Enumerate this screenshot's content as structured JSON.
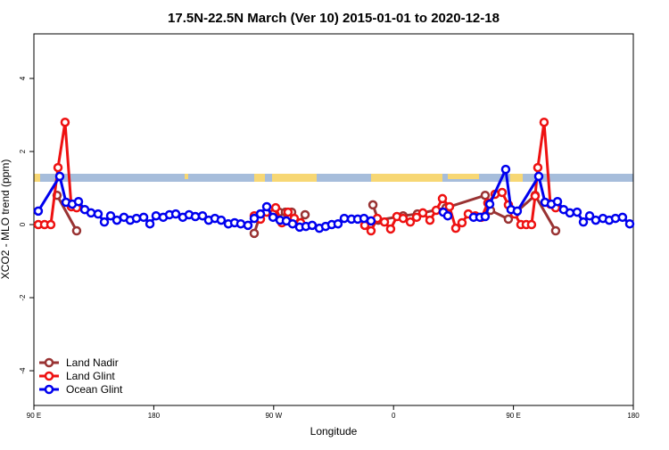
{
  "chart_data": {
    "type": "line",
    "title": "17.5N-22.5N March (Ver 10)   2015-01-01 to 2020-12-18",
    "x_label": "Longitude",
    "y_label": "XCO2 - MLO trend (ppm)",
    "xlim": [
      90,
      540
    ],
    "ylim": [
      -4.95,
      5.22
    ],
    "xticks": [
      {
        "value": 90,
        "label": "90 E"
      },
      {
        "value": 180,
        "label": "180"
      },
      {
        "value": 270,
        "label": "90 W"
      },
      {
        "value": 360,
        "label": "0"
      },
      {
        "value": 450,
        "label": "90 E"
      },
      {
        "value": 540,
        "label": "180"
      }
    ],
    "yticks": [
      -4,
      -2,
      0,
      2,
      4
    ],
    "legend": "bottom-left",
    "series": [
      {
        "name": "Land Nadir",
        "color": "#993333",
        "x": [
          107.4,
          122.1,
          null,
          255.4,
          260.1,
          274.1,
          278.8,
          283.5,
          288.2,
          293.6,
          null,
          344.5,
          348.5,
          367.2,
          377.9,
          399.4,
          428.8,
          432.8,
          446.2,
          466.3,
          481.7
        ],
        "values": [
          0.8,
          -0.17,
          null,
          -0.24,
          0.29,
          0.34,
          0.34,
          0.34,
          0.02,
          0.27,
          null,
          0.54,
          0.12,
          0.24,
          0.29,
          0.46,
          0.8,
          0.39,
          0.15,
          0.8,
          -0.17
        ]
      },
      {
        "name": "Land Glint",
        "color": "#ee1111",
        "x": [
          93.3,
          98.0,
          102.7,
          108.1,
          113.4,
          118.1,
          122.1,
          null,
          255.4,
          260.1,
          264.8,
          269.5,
          271.5,
          276.2,
          280.8,
          285.5,
          290.2,
          null,
          338.4,
          343.1,
          347.8,
          353.2,
          357.8,
          362.5,
          367.2,
          372.6,
          377.3,
          382.0,
          387.3,
          392.0,
          396.7,
          402.0,
          406.7,
          411.4,
          416.1,
          421.4,
          426.1,
          430.8,
          436.2,
          441.5,
          446.2,
          450.9,
          455.6,
          459.6,
          463.6,
          466.3,
          468.3,
          473.0,
          477.7,
          481.7
        ],
        "values": [
          0,
          0,
          0,
          1.56,
          2.8,
          0.49,
          0.46,
          null,
          0.24,
          0.15,
          0.34,
          0.29,
          0.46,
          0.05,
          0.34,
          0.17,
          0.05,
          null,
          -0.02,
          -0.17,
          0.17,
          0.07,
          -0.12,
          0.22,
          0.17,
          0.07,
          0.2,
          0.32,
          0.12,
          0.39,
          0.71,
          0.49,
          -0.1,
          0.05,
          0.29,
          0.24,
          0.2,
          0.59,
          0.83,
          0.88,
          0.54,
          0.29,
          0,
          0,
          0,
          0.78,
          1.56,
          2.8,
          0.56,
          0.46
        ]
      },
      {
        "name": "Ocean Glint",
        "color": "#0000ee",
        "x": [
          93.3,
          109.4,
          114.1,
          118.8,
          123.5,
          128.2,
          132.9,
          138.2,
          142.9,
          147.6,
          152.3,
          157.6,
          162.3,
          167.0,
          172.4,
          177.1,
          181.7,
          187.1,
          191.8,
          196.5,
          201.8,
          206.5,
          211.2,
          216.6,
          221.2,
          225.9,
          230.6,
          236.0,
          240.7,
          245.3,
          250.7,
          255.4,
          260.1,
          264.8,
          269.5,
          274.8,
          279.5,
          284.2,
          289.5,
          294.2,
          298.9,
          304.3,
          309.0,
          313.6,
          318.3,
          323.0,
          328.4,
          333.1,
          337.8,
          343.1,
          null,
          397.3,
          400.7,
          null,
          420.1,
          424.8,
          428.8,
          432.2,
          444.2,
          448.2,
          452.9,
          469.0,
          473.7,
          478.4,
          483.1,
          487.7,
          492.4,
          497.8,
          502.5,
          507.2,
          511.8,
          517.2,
          521.9,
          526.6,
          531.9,
          537.3
        ],
        "values": [
          0.37,
          1.32,
          0.61,
          0.56,
          0.63,
          0.41,
          0.32,
          0.29,
          0.07,
          0.24,
          0.12,
          0.2,
          0.12,
          0.17,
          0.2,
          0.02,
          0.24,
          0.2,
          0.27,
          0.29,
          0.2,
          0.27,
          0.22,
          0.24,
          0.12,
          0.17,
          0.12,
          0.02,
          0.05,
          0.02,
          -0.02,
          0.17,
          0.29,
          0.49,
          0.2,
          0.12,
          0.1,
          0.02,
          -0.07,
          -0.05,
          -0.02,
          -0.1,
          -0.05,
          0,
          0.02,
          0.17,
          0.15,
          0.15,
          0.17,
          0.1,
          null,
          0.34,
          0.24,
          null,
          0.2,
          0.2,
          0.22,
          0.56,
          1.51,
          0.41,
          0.37,
          1.32,
          0.61,
          0.56,
          0.63,
          0.41,
          0.32,
          0.34,
          0.07,
          0.24,
          0.12,
          0.17,
          0.12,
          0.17,
          0.2,
          0.02
        ]
      }
    ]
  }
}
